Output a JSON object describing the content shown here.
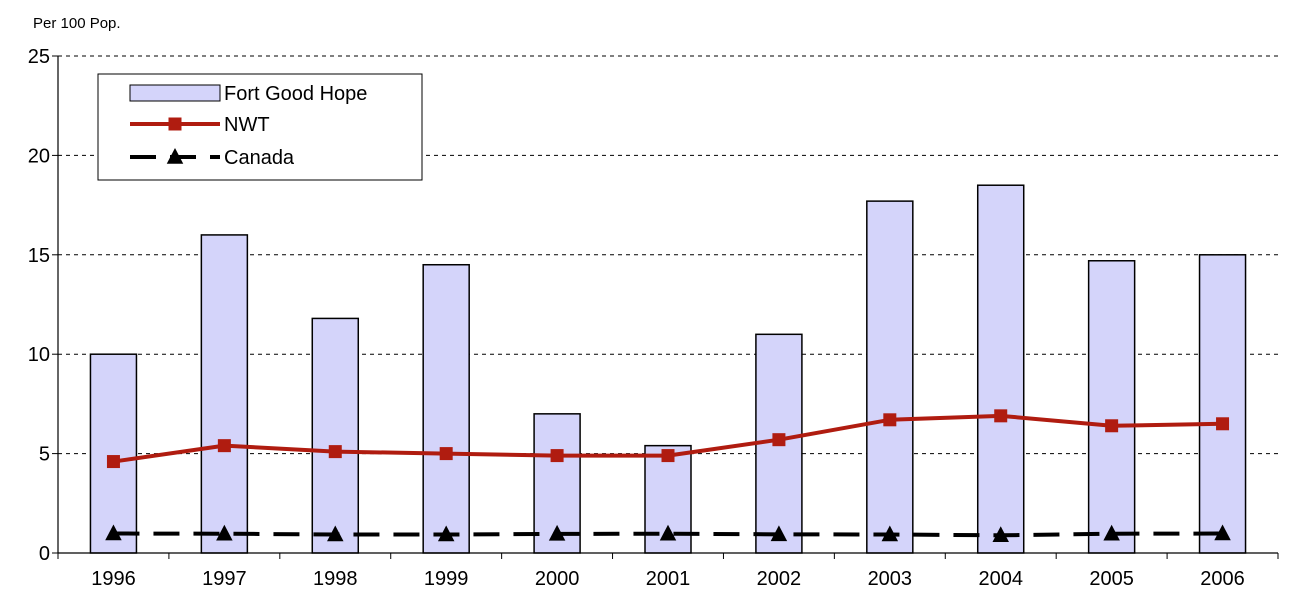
{
  "chart_data": {
    "type": "bar",
    "ylabel": "Per 100 Pop.",
    "categories": [
      "1996",
      "1997",
      "1998",
      "1999",
      "2000",
      "2001",
      "2002",
      "2003",
      "2004",
      "2005",
      "2006"
    ],
    "ylim": [
      0,
      25
    ],
    "yticks": [
      "0",
      "5",
      "10",
      "15",
      "20",
      "25"
    ],
    "grid": true,
    "legend_position": "top-left",
    "series": [
      {
        "name": "Fort Good Hope",
        "kind": "bar",
        "color": "#d4d4fa",
        "values": [
          10.0,
          16.0,
          11.8,
          14.5,
          7.0,
          5.4,
          11.0,
          17.7,
          18.5,
          14.7,
          15.0
        ]
      },
      {
        "name": "NWT",
        "kind": "line",
        "marker": "square",
        "style": "solid",
        "color": "#b01c10",
        "values": [
          4.6,
          5.4,
          5.1,
          5.0,
          4.9,
          4.9,
          5.7,
          6.7,
          6.9,
          6.4,
          6.5
        ]
      },
      {
        "name": "Canada",
        "kind": "line",
        "marker": "triangle",
        "style": "dashed",
        "color": "#000000",
        "values": [
          0.98,
          0.97,
          0.93,
          0.93,
          0.96,
          0.97,
          0.94,
          0.93,
          0.89,
          0.97,
          0.98
        ]
      }
    ]
  }
}
